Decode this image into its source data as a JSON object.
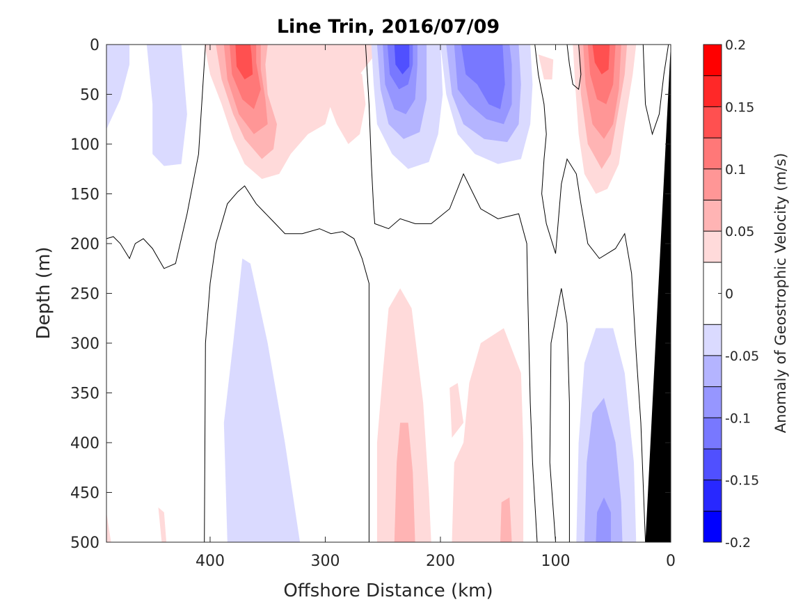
{
  "chart_data": {
    "type": "heatmap",
    "subtype": "filled-contour-section",
    "title": "Line Trin, 2016/07/09",
    "xlabel": "Offshore Distance (km)",
    "ylabel": "Depth (m)",
    "xlim": [
      490,
      0
    ],
    "ylim": [
      0,
      500
    ],
    "x_reversed": true,
    "y_reversed": true,
    "xticks": [
      400,
      300,
      200,
      100,
      0
    ],
    "yticks": [
      0,
      50,
      100,
      150,
      200,
      250,
      300,
      350,
      400,
      450,
      500
    ],
    "colorbar": {
      "label": "Anomaly of Geostrophic Velocity (m/s)",
      "limits": [
        -0.2,
        0.2
      ],
      "ticks": [
        0.2,
        0.15,
        0.1,
        0.05,
        0,
        -0.05,
        -0.1,
        -0.15,
        -0.2
      ],
      "tick_labels": [
        "0.2",
        "0.15",
        "0.1",
        "0.05",
        "0",
        "-0.05",
        "-0.1",
        "-0.15",
        "-0.2"
      ],
      "levels": [
        -0.2,
        -0.175,
        -0.15,
        -0.125,
        -0.1,
        -0.075,
        -0.05,
        -0.025,
        0.025,
        0.05,
        0.075,
        0.1,
        0.125,
        0.15,
        0.175,
        0.2
      ],
      "colors": [
        "#0000ff",
        "#2828ff",
        "#5050ff",
        "#7878ff",
        "#9696ff",
        "#b4b4ff",
        "#dadaff",
        "#ffffff",
        "#ffdada",
        "#ffb4b4",
        "#ff9696",
        "#ff7878",
        "#ff5050",
        "#ff2828",
        "#ff0000"
      ]
    },
    "topography_color": "#000000",
    "bottom_boundary": [
      [
        22,
        500
      ],
      [
        0,
        0
      ]
    ],
    "features": [
      {
        "kind": "jet",
        "sign": "positive",
        "center_x": 370,
        "center_depth": 20,
        "peak": 0.15,
        "depth_extent": [
          0,
          135
        ],
        "x_extent": [
          405,
          320
        ]
      },
      {
        "kind": "jet",
        "sign": "positive",
        "center_x": 55,
        "center_depth": 20,
        "peak": 0.15,
        "depth_extent": [
          0,
          150
        ],
        "x_extent": [
          85,
          30
        ]
      },
      {
        "kind": "jet",
        "sign": "negative",
        "center_x": 230,
        "center_depth": 20,
        "peak": -0.15,
        "depth_extent": [
          0,
          130
        ],
        "x_extent": [
          260,
          190
        ]
      },
      {
        "kind": "jet",
        "sign": "negative",
        "center_x": 160,
        "center_depth": 40,
        "peak": -0.125,
        "depth_extent": [
          0,
          120
        ],
        "x_extent": [
          195,
          120
        ]
      },
      {
        "kind": "deep",
        "sign": "negative",
        "center_x": 355,
        "depth_extent": [
          215,
          500
        ],
        "peak": -0.04
      },
      {
        "kind": "deep",
        "sign": "positive",
        "center_x": 232,
        "depth_extent": [
          245,
          500
        ],
        "peak": 0.06
      },
      {
        "kind": "deep",
        "sign": "positive",
        "center_x": 160,
        "depth_extent": [
          285,
          500
        ],
        "peak": 0.05
      },
      {
        "kind": "deep",
        "sign": "negative",
        "center_x": 55,
        "depth_extent": [
          285,
          500
        ],
        "peak": -0.11
      }
    ]
  }
}
